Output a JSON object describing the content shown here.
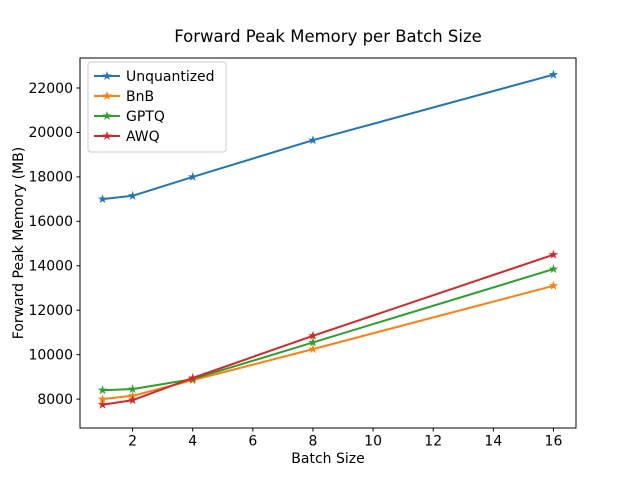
{
  "chart_data": {
    "type": "line",
    "title": "Forward Peak Memory per Batch Size",
    "xlabel": "Batch Size",
    "ylabel": "Forward Peak Memory (MB)",
    "x": [
      1,
      2,
      4,
      8,
      16
    ],
    "series": [
      {
        "name": "Unquantized",
        "color": "#1f77b4",
        "values": [
          17000,
          17150,
          18000,
          19650,
          22600
        ]
      },
      {
        "name": "BnB",
        "color": "#ff7f0e",
        "values": [
          8000,
          8150,
          8850,
          10250,
          13100
        ]
      },
      {
        "name": "GPTQ",
        "color": "#2ca02c",
        "values": [
          8400,
          8450,
          8900,
          10550,
          13850
        ]
      },
      {
        "name": "AWQ",
        "color": "#d62728",
        "values": [
          7750,
          7950,
          8950,
          10850,
          14500
        ]
      }
    ],
    "marker": "star",
    "xticks": [
      2,
      4,
      6,
      8,
      10,
      12,
      14,
      16
    ],
    "yticks": [
      8000,
      10000,
      12000,
      14000,
      16000,
      18000,
      20000,
      22000
    ],
    "xlim": [
      0.25,
      16.75
    ],
    "ylim": [
      6700,
      23350
    ],
    "grid": false,
    "legend_position": "upper left",
    "legend_edge_color": "#cccccc",
    "background": "#ffffff",
    "text_color": "#000000"
  }
}
